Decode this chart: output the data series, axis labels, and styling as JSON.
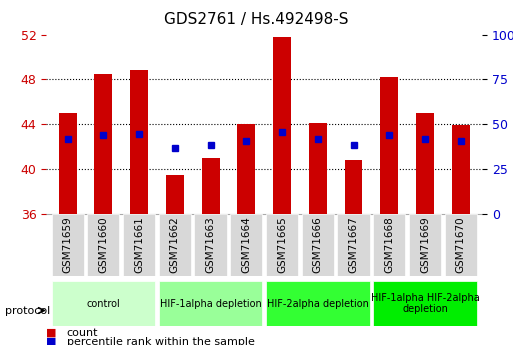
{
  "title": "GDS2761 / Hs.492498-S",
  "samples": [
    "GSM71659",
    "GSM71660",
    "GSM71661",
    "GSM71662",
    "GSM71663",
    "GSM71664",
    "GSM71665",
    "GSM71666",
    "GSM71667",
    "GSM71668",
    "GSM71669",
    "GSM71670"
  ],
  "counts": [
    45.0,
    48.5,
    48.8,
    39.5,
    41.0,
    44.0,
    51.8,
    44.1,
    40.8,
    48.2,
    45.0,
    43.9
  ],
  "percentile_ranks": [
    41.5,
    44.0,
    44.5,
    37.0,
    38.5,
    40.5,
    45.5,
    41.5,
    38.5,
    44.0,
    41.5,
    40.5
  ],
  "ylim": [
    36,
    52
  ],
  "yticks": [
    36,
    40,
    44,
    48,
    52
  ],
  "yticks_right": [
    0,
    25,
    50,
    75,
    100
  ],
  "bar_color": "#cc0000",
  "percentile_color": "#0000cc",
  "groups": [
    {
      "label": "control",
      "samples": [
        0,
        1,
        2
      ],
      "color": "#ccffcc"
    },
    {
      "label": "HIF-1alpha depletion",
      "samples": [
        3,
        4,
        5
      ],
      "color": "#99ff99"
    },
    {
      "label": "HIF-2alpha depletion",
      "samples": [
        6,
        7,
        8
      ],
      "color": "#33ff33"
    },
    {
      "label": "HIF-1alpha HIF-2alpha\ndepletion",
      "samples": [
        9,
        10,
        11
      ],
      "color": "#00ee00"
    }
  ],
  "bar_width": 0.5,
  "grid_color": "#000000",
  "bg_color": "#ffffff",
  "tick_label_color_left": "#cc0000",
  "tick_label_color_right": "#0000cc",
  "xlabel_bg": "#d0d0d0",
  "protocol_label": "protocol",
  "legend_count": "count",
  "legend_percentile": "percentile rank within the sample"
}
